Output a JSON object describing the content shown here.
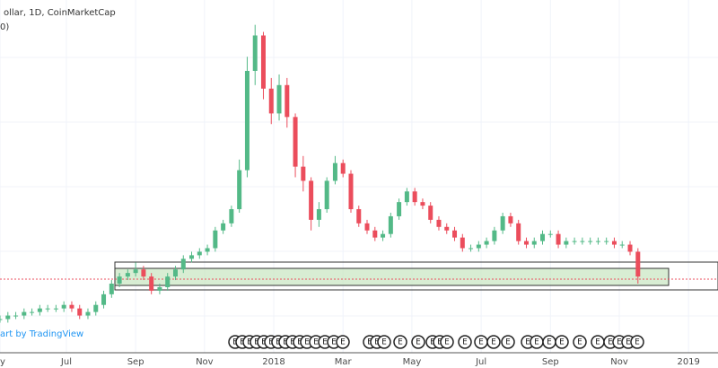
{
  "chart_data": {
    "type": "candlestick",
    "title": "ollar, 1D, CoinMarketCap",
    "subtitle": "0)",
    "credit": "art by TradingView",
    "event_label": "E",
    "up_color": "#53b987",
    "down_color": "#eb4d5c",
    "xlim": [
      2017.34,
      2019.071
    ],
    "ylim": [
      0,
      100
    ],
    "xticks": [
      {
        "value": 2017.34,
        "label": "y"
      },
      {
        "value": 2017.5,
        "label": "Jul"
      },
      {
        "value": 2017.667,
        "label": "Sep"
      },
      {
        "value": 2017.833,
        "label": "Nov"
      },
      2018,
      {
        "value": 2018.167,
        "label": "Mar"
      },
      {
        "value": 2018.333,
        "label": "May"
      },
      {
        "value": 2018.5,
        "label": "Jul"
      },
      {
        "value": 2018.667,
        "label": "Sep"
      },
      {
        "value": 2018.833,
        "label": "Nov"
      },
      2019
    ],
    "grid": true,
    "x": [
      2017.34,
      2017.359,
      2017.378,
      2017.398,
      2017.417,
      2017.436,
      2017.455,
      2017.475,
      2017.494,
      2017.513,
      2017.532,
      2017.552,
      2017.571,
      2017.59,
      2017.609,
      2017.628,
      2017.648,
      2017.667,
      2017.686,
      2017.705,
      2017.725,
      2017.744,
      2017.763,
      2017.782,
      2017.802,
      2017.821,
      2017.84,
      2017.859,
      2017.878,
      2017.898,
      2017.917,
      2017.936,
      2017.955,
      2017.975,
      2017.994,
      2018.013,
      2018.032,
      2018.052,
      2018.071,
      2018.09,
      2018.109,
      2018.128,
      2018.148,
      2018.167,
      2018.186,
      2018.205,
      2018.225,
      2018.244,
      2018.263,
      2018.282,
      2018.302,
      2018.321,
      2018.34,
      2018.359,
      2018.378,
      2018.398,
      2018.417,
      2018.436,
      2018.455,
      2018.475,
      2018.494,
      2018.513,
      2018.532,
      2018.552,
      2018.571,
      2018.59,
      2018.609,
      2018.628,
      2018.648,
      2018.667,
      2018.686,
      2018.705,
      2018.725,
      2018.744,
      2018.763,
      2018.782,
      2018.802,
      2018.821,
      2018.84,
      2018.859,
      2018.878
    ],
    "open": [
      10,
      10,
      11,
      11,
      12,
      12,
      13,
      13,
      13,
      14,
      13,
      11,
      12,
      14,
      17,
      20,
      22,
      23,
      24,
      22,
      18,
      19,
      22,
      24,
      27,
      28,
      29,
      30,
      35,
      37,
      41,
      52,
      80,
      90,
      75,
      68,
      76,
      67,
      53,
      49,
      38,
      41,
      49,
      54,
      51,
      41,
      37,
      35,
      33,
      34,
      39,
      43,
      46,
      43,
      42,
      38,
      36,
      35,
      33,
      30,
      30,
      31,
      32,
      35,
      39,
      37,
      32,
      31,
      32,
      34,
      34,
      31,
      32,
      32,
      32,
      32,
      32,
      32,
      31,
      31,
      29
    ],
    "high": [
      11,
      12,
      12,
      13,
      13,
      14,
      14,
      14,
      15,
      15,
      14,
      13,
      15,
      18,
      21,
      23,
      24,
      26,
      25,
      23,
      20,
      23,
      25,
      28,
      29,
      30,
      31,
      36,
      38,
      42,
      55,
      84,
      93,
      91,
      78,
      79,
      78,
      68,
      56,
      50,
      43,
      50,
      56,
      55,
      52,
      42,
      38,
      36,
      35,
      40,
      44,
      47,
      47,
      44,
      43,
      39,
      37,
      36,
      34,
      31,
      32,
      33,
      36,
      40,
      40,
      38,
      33,
      33,
      35,
      35,
      35,
      33,
      33,
      33,
      33,
      33,
      33,
      33,
      32,
      32,
      30
    ],
    "low": [
      9,
      9,
      10,
      10,
      11,
      11,
      12,
      12,
      12,
      12,
      10,
      10,
      11,
      13,
      16,
      19,
      21,
      22,
      21,
      17,
      17,
      18,
      21,
      23,
      26,
      27,
      28,
      29,
      34,
      36,
      40,
      50,
      76,
      72,
      65,
      66,
      64,
      50,
      46,
      35,
      36,
      40,
      48,
      50,
      40,
      36,
      34,
      32,
      32,
      33,
      38,
      42,
      42,
      41,
      37,
      35,
      34,
      32,
      29,
      29,
      29,
      30,
      31,
      34,
      36,
      31,
      30,
      30,
      31,
      33,
      30,
      30,
      31,
      31,
      31,
      31,
      31,
      30,
      30,
      28,
      20
    ],
    "close": [
      10,
      11,
      11,
      12,
      12,
      13,
      13,
      13,
      14,
      13,
      11,
      12,
      14,
      17,
      20,
      22,
      23,
      24,
      22,
      18,
      19,
      22,
      24,
      27,
      28,
      29,
      30,
      35,
      37,
      41,
      52,
      80,
      90,
      75,
      68,
      76,
      67,
      53,
      49,
      38,
      41,
      49,
      54,
      51,
      41,
      37,
      35,
      33,
      34,
      39,
      43,
      46,
      43,
      42,
      38,
      36,
      35,
      33,
      30,
      30,
      31,
      32,
      35,
      39,
      37,
      32,
      31,
      32,
      34,
      34,
      31,
      32,
      32,
      32,
      32,
      32,
      32,
      31,
      31,
      29,
      22
    ]
  }
}
